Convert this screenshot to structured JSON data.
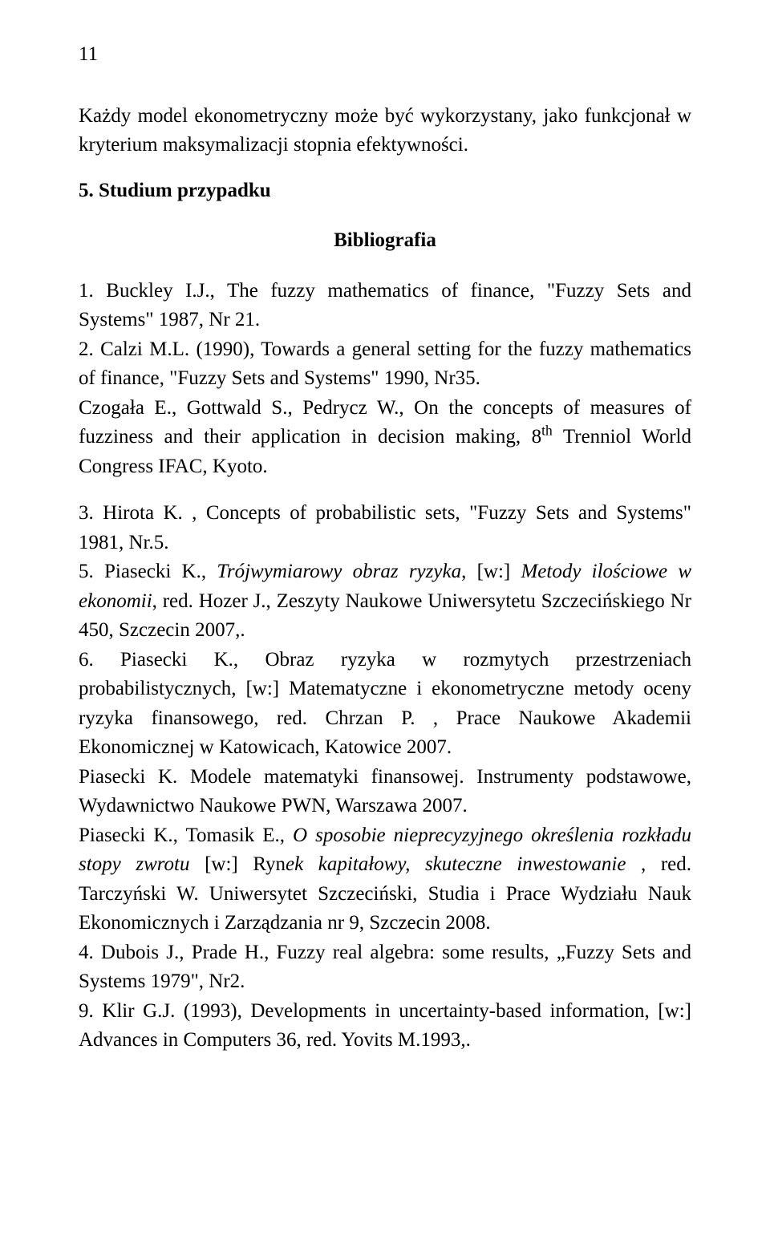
{
  "page_number": "11",
  "body_paragraph": "Każdy model ekonometryczny może  być wykorzystany, jako funkcjonał w kryterium maksymalizacji stopnia efektywności.",
  "section_heading": "5. Studium przypadku",
  "biblio_heading": "Bibliografia",
  "refs": {
    "r1": "1. Buckley I.J., The fuzzy mathematics of finance, \"Fuzzy Sets and Systems\" 1987, Nr 21.",
    "r2": "2. Calzi M.L. (1990), Towards a general setting for the fuzzy mathematics of finance, \"Fuzzy Sets and Systems\" 1990, Nr35.",
    "r3_pre": "Czogała E., Gottwald S., Pedrycz W., On the concepts of measures of fuzziness and their application in decision making, 8",
    "r3_sup": "th",
    "r3_post": " Trenniol World Congress IFAC, Kyoto.",
    "r4": "3. Hirota K. , Concepts of probabilistic sets, \"Fuzzy Sets and Systems\" 1981, Nr.5.",
    "r5_a": "5. Piasecki K., ",
    "r5_b": "Trójwymiarowy obraz ryzyka",
    "r5_c": ",   [w:] ",
    "r5_d": "Metody ilościowe w ekonomii",
    "r5_e": ", red. Hozer J.,  Zeszyty Naukowe Uniwersytetu Szczecińskiego Nr 450, Szczecin 2007,.",
    "r6": "6. Piasecki K., Obraz ryzyka w rozmytych przestrzeniach probabilistycznych, [w:] Matematyczne i ekonometryczne metody oceny ryzyka finansowego, red. Chrzan P. , Prace Naukowe Akademii Ekonomicznej w Katowicach, Katowice 2007.",
    "r7": "Piasecki K.  Modele matematyki finansowej. Instrumenty podstawowe, Wydawnictwo Naukowe PWN, Warszawa 2007.",
    "r8_a": "Piasecki K., Tomasik E., ",
    "r8_b": "O sposobie nieprecyzyjnego określenia rozkładu stopy zwrotu",
    "r8_c": " [w:] Ryn",
    "r8_d": "ek kapitałowy, skuteczne inwestowanie",
    "r8_e": " , red. Tarczyński W. Uniwersytet Szczeciński, Studia i Prace Wydziału Nauk Ekonomicznych i Zarządzania nr 9, Szczecin 2008.",
    "r9": "4. Dubois J., Prade H., Fuzzy real algebra: some results, „Fuzzy Sets and Systems 1979\", Nr2.",
    "r10": "9. Klir G.J. (1993), Developments in uncertainty-based information, [w:] Advances in Computers 36, red. Yovits M.1993,."
  }
}
